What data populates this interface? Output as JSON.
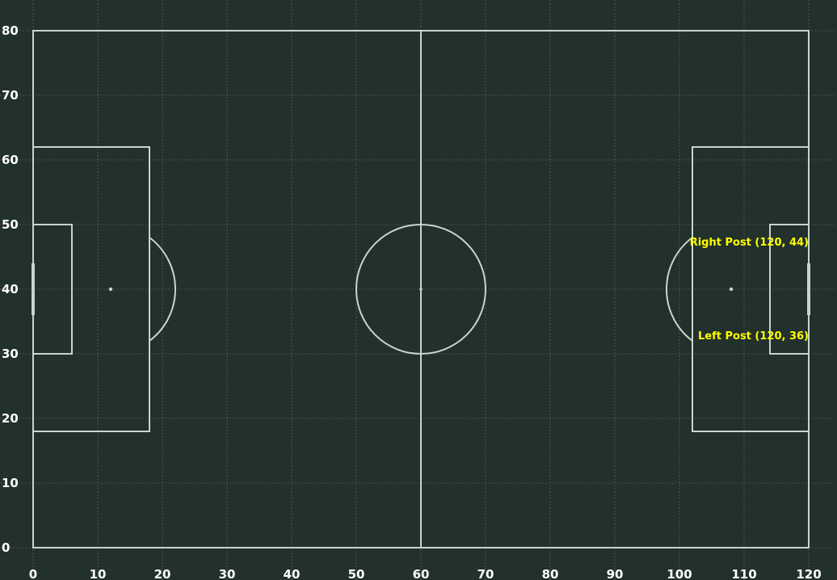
{
  "chart_data": {
    "type": "diagram",
    "title": "",
    "background": "#22312b",
    "line_color": "#c7d5cc",
    "annotation_color": "#ffff00",
    "pitch": {
      "length": 120,
      "width": 80
    },
    "xlim": [
      0,
      120
    ],
    "ylim": [
      0,
      80
    ],
    "grid": true,
    "x_ticks": [
      "0",
      "10",
      "20",
      "30",
      "40",
      "50",
      "60",
      "70",
      "80",
      "90",
      "100",
      "110",
      "120"
    ],
    "y_ticks": [
      "0",
      "10",
      "20",
      "30",
      "40",
      "50",
      "60",
      "70",
      "80"
    ],
    "annotations": [
      {
        "label": "Right Post (120, 44)",
        "x": 120,
        "y": 44
      },
      {
        "label": "Left Post (120, 36)",
        "x": 120,
        "y": 36
      }
    ]
  }
}
